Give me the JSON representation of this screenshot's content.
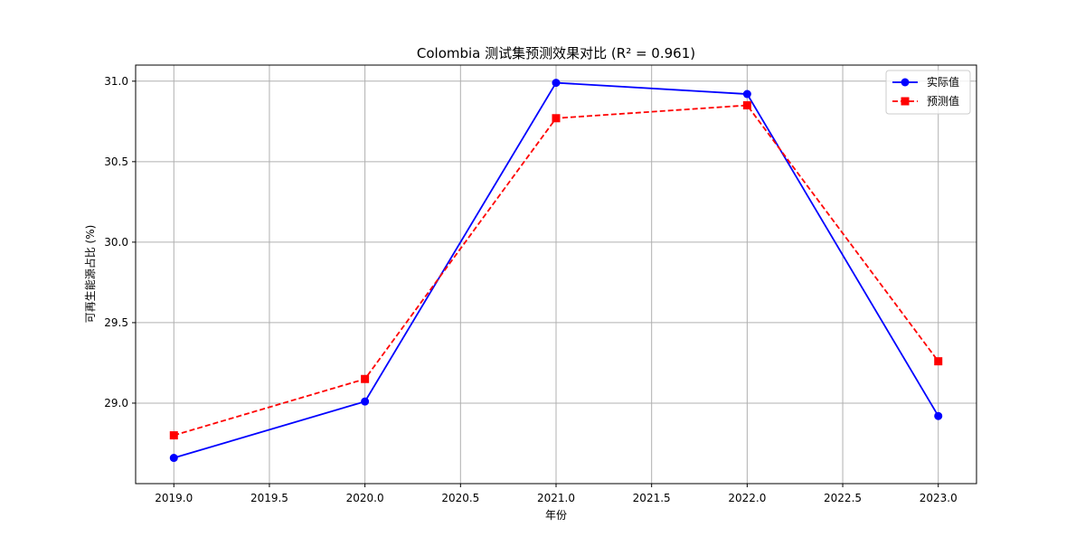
{
  "chart_data": {
    "type": "line",
    "title": "Colombia 测试集预测效果对比 (R² = 0.961)",
    "xlabel": "年份",
    "ylabel": "可再生能源占比 (%)",
    "xlim": [
      2018.8,
      2023.2
    ],
    "ylim": [
      28.5,
      31.1
    ],
    "xticks": [
      2019.0,
      2019.5,
      2020.0,
      2020.5,
      2021.0,
      2021.5,
      2022.0,
      2022.5,
      2023.0
    ],
    "xtick_labels": [
      "2019.0",
      "2019.5",
      "2020.0",
      "2020.5",
      "2021.0",
      "2021.5",
      "2022.0",
      "2022.5",
      "2023.0"
    ],
    "yticks": [
      29.0,
      29.5,
      30.0,
      30.5,
      31.0
    ],
    "ytick_labels": [
      "29.0",
      "29.5",
      "30.0",
      "30.5",
      "31.0"
    ],
    "grid": true,
    "legend_position": "top-right",
    "x": [
      2019,
      2020,
      2021,
      2022,
      2023
    ],
    "series": [
      {
        "name": "实际值",
        "values": [
          28.66,
          29.01,
          30.99,
          30.92,
          28.92
        ],
        "color": "#0000ff",
        "style": "solid",
        "marker": "circle"
      },
      {
        "name": "预测值",
        "values": [
          28.8,
          29.15,
          30.77,
          30.85,
          29.26
        ],
        "color": "#ff0000",
        "style": "dashed",
        "marker": "square"
      }
    ]
  }
}
